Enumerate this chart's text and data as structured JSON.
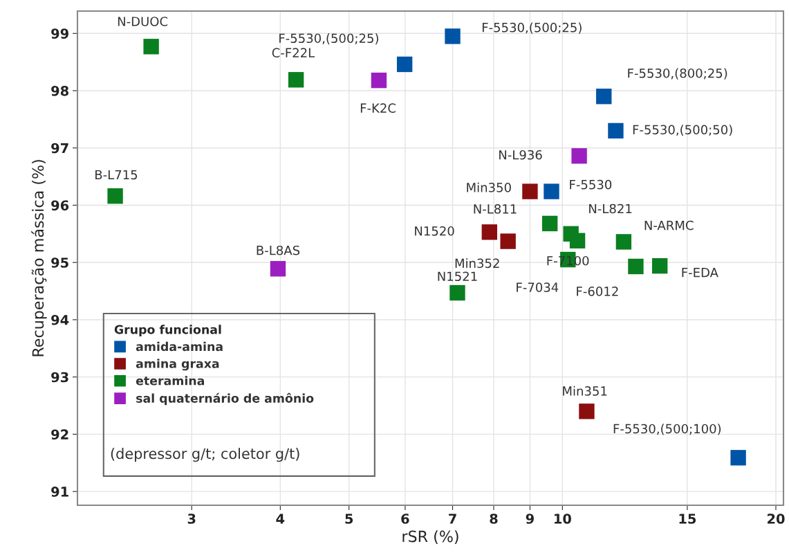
{
  "chart_data": {
    "type": "scatter",
    "xlabel": "rSR (%)",
    "ylabel": "Recuperação mássica (%)",
    "legend_title": "Grupo funcional",
    "legend": "bottom left",
    "marker": "square",
    "log": "x",
    "grid": true,
    "xlim": [
      2.07,
      20.5
    ],
    "ylim": [
      90.76,
      99.39
    ],
    "xticks": [
      3,
      4,
      5,
      6,
      7,
      8,
      9,
      10,
      15,
      20
    ],
    "yticks": [
      91,
      92,
      93,
      94,
      95,
      96,
      97,
      98,
      99
    ],
    "series": [
      {
        "name": "amida-amina",
        "color": "#0054a6",
        "x": [
          7.0,
          5.99,
          11.44,
          11.89,
          9.65,
          17.7
        ],
        "values": [
          98.95,
          98.46,
          97.9,
          97.3,
          96.24,
          91.59
        ]
      },
      {
        "name": "amina graxa",
        "color": "#8b0e0e",
        "x": [
          9.0,
          7.89,
          8.38,
          10.82
        ],
        "values": [
          96.24,
          95.53,
          95.37,
          92.4
        ]
      },
      {
        "name": "eteramina",
        "color": "#0a7f1f",
        "x": [
          2.63,
          4.21,
          2.34,
          9.6,
          10.28,
          10.5,
          12.2,
          10.18,
          12.69,
          13.72,
          7.11
        ],
        "values": [
          98.77,
          98.19,
          96.16,
          95.68,
          95.5,
          95.38,
          95.36,
          95.05,
          94.93,
          94.94,
          94.47
        ]
      },
      {
        "name": "sal quaternário de amônio",
        "color": "#9b1fc0",
        "x": [
          5.51,
          10.56,
          3.97
        ],
        "values": [
          98.18,
          96.86,
          94.89
        ]
      }
    ],
    "annotations": [
      {
        "text": "F-5530,(500;25)",
        "x": 7.0,
        "y": 98.95
      },
      {
        "text": "F-5530,(500;25)",
        "x": 5.99,
        "y": 98.46
      },
      {
        "text": "F-5530,(800;25)",
        "x": 11.44,
        "y": 97.9
      },
      {
        "text": "F-5530,(500;50)",
        "x": 11.89,
        "y": 97.3
      },
      {
        "text": "F-5530",
        "x": 9.65,
        "y": 96.24
      },
      {
        "text": "F-5530,(500;100)",
        "x": 17.7,
        "y": 91.59
      },
      {
        "text": "Min350",
        "x": 9.0,
        "y": 96.24
      },
      {
        "text": "N1520",
        "x": 7.89,
        "y": 95.53
      },
      {
        "text": "Min352",
        "x": 8.38,
        "y": 95.37
      },
      {
        "text": "Min351",
        "x": 10.82,
        "y": 92.4
      },
      {
        "text": "N-DUOC",
        "x": 2.63,
        "y": 98.77
      },
      {
        "text": "C-F22L",
        "x": 4.21,
        "y": 98.19
      },
      {
        "text": "B-L715",
        "x": 2.34,
        "y": 96.16
      },
      {
        "text": "N-L811",
        "x": 9.6,
        "y": 95.68
      },
      {
        "text": "N-L821",
        "x": 10.28,
        "y": 95.5
      },
      {
        "text": "F-7100",
        "x": 10.5,
        "y": 95.38
      },
      {
        "text": "N-ARMC",
        "x": 12.2,
        "y": 95.36
      },
      {
        "text": "F-7034",
        "x": 10.18,
        "y": 95.05
      },
      {
        "text": "F-6012",
        "x": 12.69,
        "y": 94.93
      },
      {
        "text": "F-EDA",
        "x": 13.72,
        "y": 94.94
      },
      {
        "text": "N1521",
        "x": 7.11,
        "y": 94.47
      },
      {
        "text": "F-K2C",
        "x": 5.51,
        "y": 98.18
      },
      {
        "text": "N-L936",
        "x": 10.56,
        "y": 96.86
      },
      {
        "text": "B-L8AS",
        "x": 3.97,
        "y": 94.89
      },
      "(depressor g/t; coletor g/t)"
    ]
  }
}
